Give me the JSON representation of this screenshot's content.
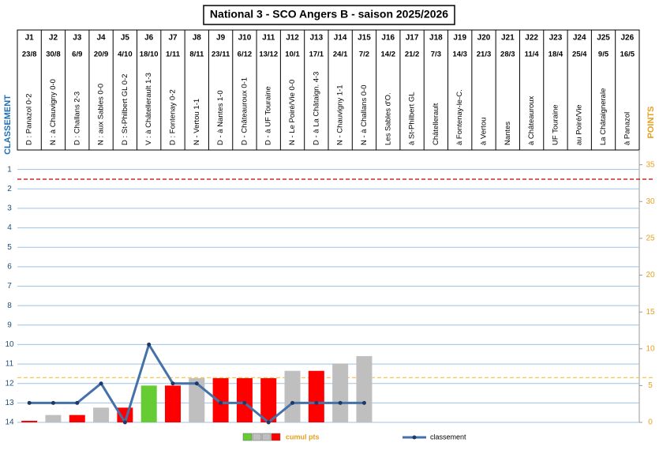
{
  "chart_data": {
    "type": "combo",
    "title": "National 3 - SCO Angers B - saison 2025/2026",
    "categories": [
      "J1",
      "J2",
      "J3",
      "J4",
      "J5",
      "J6",
      "J7",
      "J8",
      "J9",
      "J10",
      "J11",
      "J12",
      "J13",
      "J14",
      "J15",
      "J16",
      "J17",
      "J18",
      "J19",
      "J20",
      "J21",
      "J22",
      "J23",
      "J24",
      "J25",
      "J26"
    ],
    "dates": [
      "23/8",
      "30/8",
      "6/9",
      "20/9",
      "4/10",
      "18/10",
      "1/11",
      "8/11",
      "23/11",
      "6/12",
      "13/12",
      "10/1",
      "17/1",
      "24/1",
      "7/2",
      "14/2",
      "21/2",
      "7/3",
      "14/3",
      "21/3",
      "28/3",
      "11/4",
      "18/4",
      "25/4",
      "9/5",
      "16/5"
    ],
    "matches": [
      "D : Panazol 0-2",
      "N : à Chauvigny 0-0",
      "D : Challans 2-3",
      "N : aux Sables 0-0",
      "D : St-Philbert GL 0-2",
      "V : à Châtellerault 1-3",
      "D : Fontenay 0-2",
      "N - Vertou 1-1",
      "D - à Nantes 1-0",
      "D - Châteauroux 0-1",
      "D - à UF Touraine",
      "N - Le Poiré/Vie 0-0",
      "D - à La Châtaign. 4-3",
      "N - Chauvigny 1-1",
      "N - à Challans 0-0",
      "Les Sables d'O.",
      "à St-Philbert GL",
      "Châtellerault",
      "à Fontenay-le-C.",
      "à Vertou",
      "Nantes",
      "à Châteauroux",
      "UF Touraine",
      "au Poiré/Vie",
      "La Châtaignerale",
      "à Panazol"
    ],
    "ylabel": "CLASSEMENT",
    "y2label": "POINTS",
    "ylim": [
      0,
      14
    ],
    "y_inverted": true,
    "yticks": [
      1,
      2,
      3,
      4,
      5,
      6,
      7,
      8,
      9,
      10,
      11,
      12,
      13,
      14
    ],
    "y2lim": [
      0,
      37
    ],
    "y2ticks": [
      0,
      5,
      10,
      15,
      20,
      25,
      30,
      35
    ],
    "grid": true,
    "reference_lines": [
      {
        "axis": "y",
        "value": 1.5,
        "color": "#c00000"
      },
      {
        "axis": "y",
        "value": 11.7,
        "color": "#f5c242"
      }
    ],
    "series": [
      {
        "name": "cumul pts",
        "type": "bar",
        "axis": "y2",
        "legend_colors": [
          "#66cc33",
          "#bfbfbf",
          "#bfbfbf",
          "#ff0000"
        ],
        "colors": [
          "#ff0000",
          "#bfbfbf",
          "#ff0000",
          "#bfbfbf",
          "#ff0000",
          "#66cc33",
          "#ff0000",
          "#bfbfbf",
          "#ff0000",
          "#ff0000",
          "#ff0000",
          "#bfbfbf",
          "#ff0000",
          "#bfbfbf",
          "#bfbfbf",
          null,
          null,
          null,
          null,
          null,
          null,
          null,
          null,
          null,
          null,
          null
        ],
        "values": [
          0,
          1,
          1,
          2,
          2,
          5,
          5,
          6,
          6,
          6,
          6,
          7,
          7,
          8,
          9,
          null,
          null,
          null,
          null,
          null,
          null,
          null,
          null,
          null,
          null,
          null
        ]
      },
      {
        "name": "classement",
        "type": "line",
        "axis": "y",
        "color": "#4472a8",
        "values": [
          13,
          13,
          13,
          12,
          14,
          10,
          12,
          12,
          13,
          13,
          14,
          13,
          13,
          13,
          13,
          null,
          null,
          null,
          null,
          null,
          null,
          null,
          null,
          null,
          null,
          null
        ]
      }
    ]
  }
}
